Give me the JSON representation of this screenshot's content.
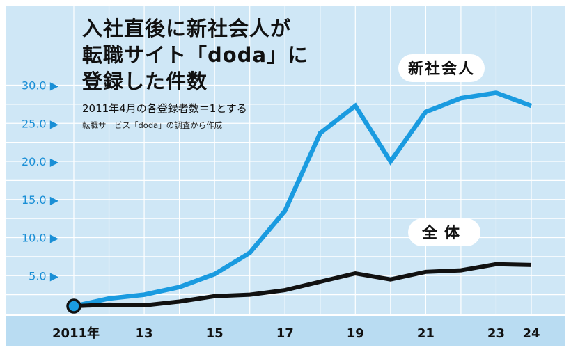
{
  "chart_data": {
    "type": "line",
    "title_lines": [
      "入社直後に新社会人が",
      "転職サイト「doda」に",
      "登録した件数"
    ],
    "subtitle": "2011年4月の各登録者数＝1とする",
    "source": "転職サービス「doda」の調査から作成",
    "x": [
      2011,
      2012,
      2013,
      2014,
      2015,
      2016,
      2017,
      2018,
      2019,
      2020,
      2021,
      2022,
      2023,
      2024
    ],
    "x_tick_values": [
      2011,
      2013,
      2015,
      2017,
      2019,
      2021,
      2023,
      2024
    ],
    "x_tick_labels": [
      "2011年",
      "13",
      "15",
      "17",
      "19",
      "21",
      "23",
      "24"
    ],
    "y_ticks": [
      5.0,
      10.0,
      15.0,
      20.0,
      25.0,
      30.0
    ],
    "y_tick_labels": [
      "5.0 ▶",
      "10.0 ▶",
      "15.0 ▶",
      "20.0 ▶",
      "25.0 ▶",
      "30.0 ▶"
    ],
    "ylim": [
      0,
      31.5
    ],
    "grid": true,
    "series": [
      {
        "name": "新社会人",
        "color": "#1a9be0",
        "values": [
          1.0,
          2.0,
          2.5,
          3.5,
          5.2,
          8.0,
          13.5,
          23.7,
          27.3,
          20.0,
          26.5,
          28.3,
          29.0,
          27.3
        ]
      },
      {
        "name": "全体",
        "color": "#111111",
        "values": [
          1.0,
          1.2,
          1.1,
          1.6,
          2.3,
          2.5,
          3.1,
          4.2,
          5.3,
          4.5,
          5.5,
          5.7,
          6.5,
          6.4
        ]
      }
    ],
    "colors": {
      "plot_background": "#cfe7f6",
      "axis_band": "#b9dcf2",
      "grid": "#ffffff",
      "tick_label": "#1a8fd6",
      "marker_fill": "#1a9be0",
      "marker_stroke": "#111111"
    }
  }
}
